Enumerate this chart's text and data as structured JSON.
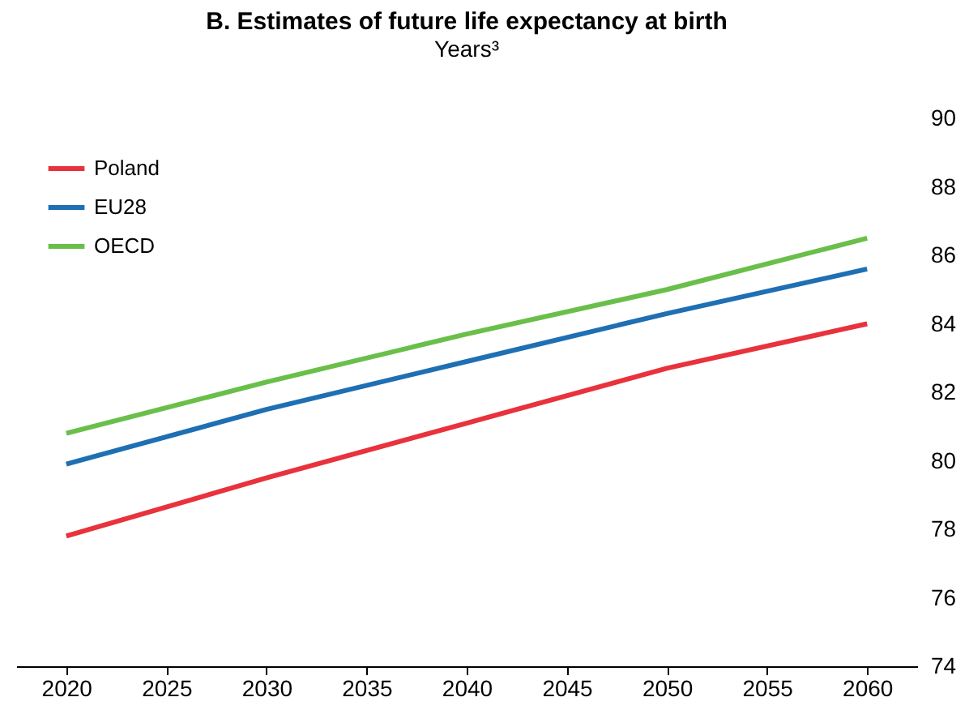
{
  "chart_data": {
    "type": "line",
    "title": "B. Estimates of future life expectancy at birth",
    "subtitle": "Years³",
    "x": [
      2020,
      2030,
      2040,
      2050,
      2060
    ],
    "xlim": [
      2017.5,
      2062.5
    ],
    "xticks": [
      2020,
      2025,
      2030,
      2035,
      2040,
      2045,
      2050,
      2055,
      2060
    ],
    "ylim": [
      74,
      90
    ],
    "yticks": [
      74,
      76,
      78,
      80,
      82,
      84,
      86,
      88,
      90
    ],
    "series": [
      {
        "name": "Poland",
        "color": "#e8323c",
        "values": [
          77.8,
          79.5,
          81.1,
          82.7,
          84.0
        ]
      },
      {
        "name": "EU28",
        "color": "#1f6fb4",
        "values": [
          79.9,
          81.5,
          82.9,
          84.3,
          85.6
        ]
      },
      {
        "name": "OECD",
        "color": "#6abf4b",
        "values": [
          80.8,
          82.3,
          83.7,
          85.0,
          86.5
        ]
      }
    ],
    "legend": "top left",
    "grid": false,
    "marker": "none",
    "line_style": "solid"
  }
}
